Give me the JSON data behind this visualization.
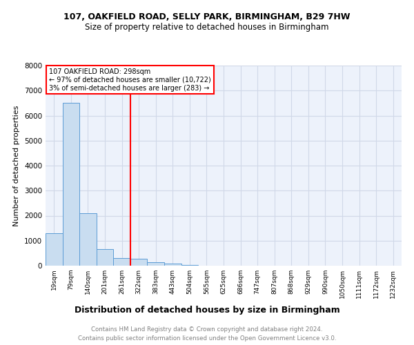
{
  "title1": "107, OAKFIELD ROAD, SELLY PARK, BIRMINGHAM, B29 7HW",
  "title2": "Size of property relative to detached houses in Birmingham",
  "xlabel": "Distribution of detached houses by size in Birmingham",
  "ylabel": "Number of detached properties",
  "bar_labels": [
    "19sqm",
    "79sqm",
    "140sqm",
    "201sqm",
    "261sqm",
    "322sqm",
    "383sqm",
    "443sqm",
    "504sqm",
    "565sqm",
    "625sqm",
    "686sqm",
    "747sqm",
    "807sqm",
    "868sqm",
    "929sqm",
    "990sqm",
    "1050sqm",
    "1111sqm",
    "1172sqm",
    "1232sqm"
  ],
  "bar_values": [
    1300,
    6500,
    2100,
    650,
    300,
    270,
    130,
    70,
    30,
    5,
    1,
    0,
    0,
    0,
    0,
    0,
    0,
    0,
    0,
    0,
    0
  ],
  "bar_color": "#c9ddf0",
  "bar_edge_color": "#5b9bd5",
  "vline_x_index": 4.5,
  "vline_color": "red",
  "annotation_line1": "107 OAKFIELD ROAD: 298sqm",
  "annotation_line2": "← 97% of detached houses are smaller (10,722)",
  "annotation_line3": "3% of semi-detached houses are larger (283) →",
  "ylim": [
    0,
    8000
  ],
  "yticks": [
    0,
    1000,
    2000,
    3000,
    4000,
    5000,
    6000,
    7000,
    8000
  ],
  "grid_color": "#d0d8e8",
  "background_color": "#edf2fb",
  "footer1": "Contains HM Land Registry data © Crown copyright and database right 2024.",
  "footer2": "Contains public sector information licensed under the Open Government Licence v3.0."
}
